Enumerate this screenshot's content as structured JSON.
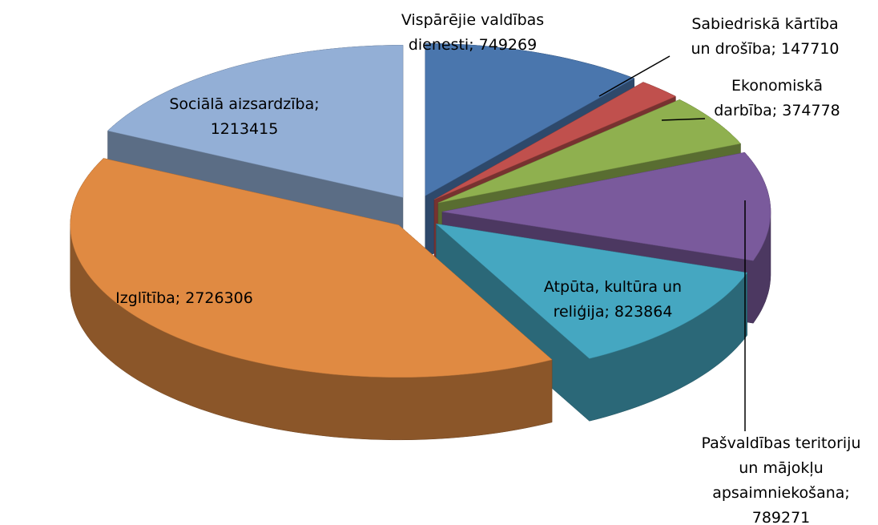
{
  "chart_data": {
    "type": "pie",
    "three_d": true,
    "exploded": true,
    "categories": [
      "Vispārējie valdības dienesti",
      "Sabiedriskā kārtība un drošība",
      "Ekonomiskā darbība",
      "Pašvaldības teritoriju un mājokļu apsaimniekošana",
      "Atpūta, kultūra un reliģija",
      "Izglītība",
      "Sociālā aizsardzība"
    ],
    "values": [
      749269,
      147710,
      374778,
      789271,
      823864,
      2726306,
      1213415
    ],
    "value_labels": [
      "Vispārējie valdības dienesti; 749269",
      "Sabiedriskā kārtība un drošība; 147710",
      "Ekonomiskā darbība; 374778",
      "Pašvaldības teritoriju un mājokļu apsaimniekošana; 789271",
      "Atpūta, kultūra un reliģija; 823864",
      "Izglītība; 2726306",
      "Sociālā aizsardzība; 1213415"
    ],
    "colors": [
      "#4a76ad",
      "#c0504d",
      "#8fb04f",
      "#7a5a9c",
      "#45a7c1",
      "#e08a42",
      "#93afd6"
    ]
  }
}
